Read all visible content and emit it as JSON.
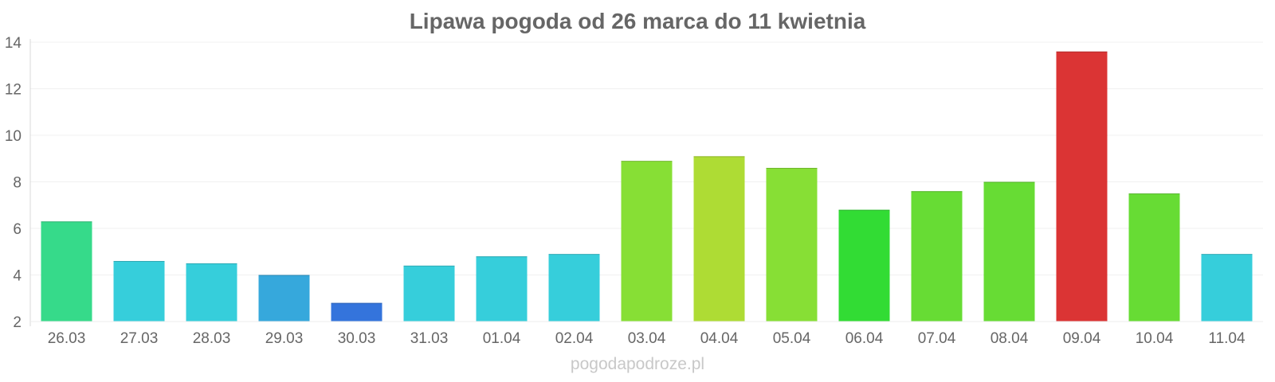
{
  "chart_data": {
    "type": "bar",
    "title": "Lipawa pogoda od 26 marca do 11 kwietnia",
    "xlabel": "",
    "ylabel": "",
    "ylim": [
      2,
      14
    ],
    "yticks": [
      "2",
      "4",
      "6",
      "8",
      "10",
      "12",
      "14"
    ],
    "grid": true,
    "legend": "none",
    "categories": [
      "26.03",
      "27.03",
      "28.03",
      "29.03",
      "30.03",
      "31.03",
      "01.04",
      "02.04",
      "03.04",
      "04.04",
      "05.04",
      "06.04",
      "07.04",
      "08.04",
      "09.04",
      "10.04",
      "11.04"
    ],
    "values": [
      6.3,
      4.6,
      4.5,
      4.0,
      2.8,
      4.4,
      4.8,
      4.9,
      8.9,
      9.1,
      8.6,
      6.8,
      7.6,
      8.0,
      13.6,
      7.5,
      4.9
    ],
    "colors": [
      "#36da8a",
      "#36cedb",
      "#36cedb",
      "#36a8dc",
      "#3474dc",
      "#36cedb",
      "#36cedb",
      "#36cedb",
      "#87df35",
      "#aedc34",
      "#87df35",
      "#32dc34",
      "#67dc34",
      "#67dc34",
      "#db3434",
      "#67dc34",
      "#36cedb"
    ]
  },
  "watermark": "pogodapodroze.pl"
}
